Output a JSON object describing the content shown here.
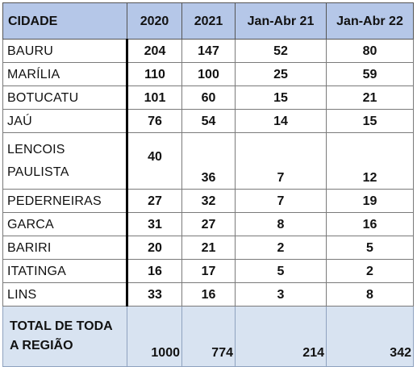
{
  "header": {
    "city": "CIDADE",
    "c2020": "2020",
    "c2021": "2021",
    "jan21": "Jan-Abr 21",
    "jan22": "Jan-Abr 22"
  },
  "rows": [
    {
      "city": "BAURU",
      "v2020": "204",
      "v2021": "147",
      "jan21": "52",
      "jan22": "80"
    },
    {
      "city": "MARÍLIA",
      "v2020": "110",
      "v2021": "100",
      "jan21": "25",
      "jan22": "59"
    },
    {
      "city": "BOTUCATU",
      "v2020": "101",
      "v2021": "60",
      "jan21": "15",
      "jan22": "21"
    },
    {
      "city": "JAÚ",
      "v2020": "76",
      "v2021": "54",
      "jan21": "14",
      "jan22": "15"
    },
    {
      "city_line1": "LENCOIS",
      "city_line2": "PAULISTA",
      "v2020": "40",
      "v2021": "36",
      "jan21": "7",
      "jan22": "12"
    },
    {
      "city": "PEDERNEIRAS",
      "v2020": "27",
      "v2021": "32",
      "jan21": "7",
      "jan22": "19"
    },
    {
      "city": "GARCA",
      "v2020": "31",
      "v2021": "27",
      "jan21": "8",
      "jan22": "16"
    },
    {
      "city": "BARIRI",
      "v2020": "20",
      "v2021": "21",
      "jan21": "2",
      "jan22": "5"
    },
    {
      "city": "ITATINGA",
      "v2020": "16",
      "v2021": "17",
      "jan21": "5",
      "jan22": "2"
    },
    {
      "city": "LINS",
      "v2020": "33",
      "v2021": "16",
      "jan21": "3",
      "jan22": "8"
    }
  ],
  "total": {
    "label_line1": "TOTAL DE TODA",
    "label_line2": "A REGIÃO",
    "v2020": "1000",
    "v2021": "774",
    "jan21": "214",
    "jan22": "342"
  }
}
